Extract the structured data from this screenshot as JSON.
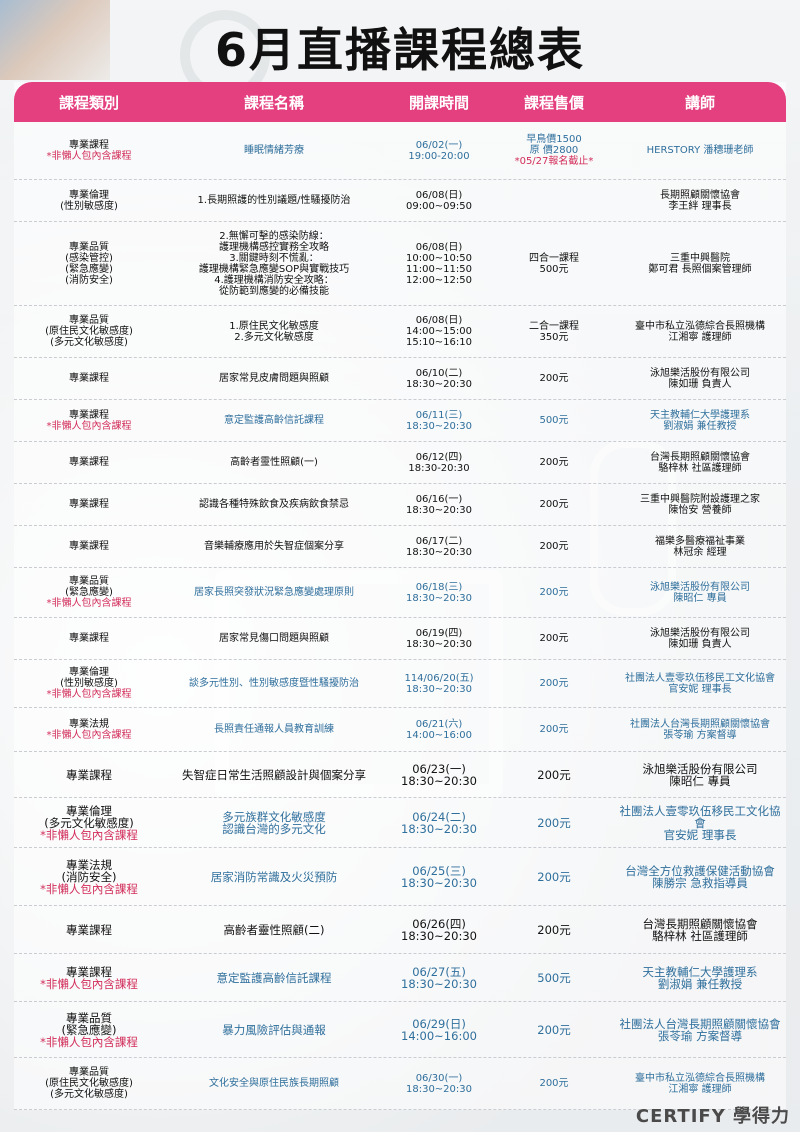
{
  "title": "6月直播課程總表",
  "brand": "CERTIFY 學得力",
  "headers": [
    "課程類別",
    "課程名稱",
    "開課時間",
    "課程售價",
    "講師"
  ],
  "rows": [
    {
      "style": "blue",
      "h": 58,
      "category": "專業課程",
      "note": "*非懶人包內含課程",
      "course": "睡眠情緒芳療",
      "time": "06/02(一)\n19:00-20:00",
      "price": "早鳥價1500\n原    價2800",
      "price_note": "*05/27報名截止*",
      "teacher": "HERSTORY 潘穗珊老師"
    },
    {
      "style": "",
      "h": 42,
      "category": "專業倫理\n(性別敏感度)",
      "note": "",
      "course": "1.長期照護的性別議題/性騷擾防治",
      "time": "06/08(日)\n09:00~09:50",
      "price": "",
      "price_note": "",
      "teacher": "長期照顧關懷協會\n李王絆 理事長"
    },
    {
      "style": "",
      "h": 84,
      "category": "專業品質\n(感染管控)\n(緊急應變)\n(消防安全)",
      "note": "",
      "course": "2.無懈可擊的感染防線：\n護理機構感控實務全攻略\n3.關鍵時刻不慌亂：\n護理機構緊急應變SOP與實戰技巧\n4.護理機構消防安全攻略：\n從防範到應變的必備技能",
      "time": "06/08(日)\n10:00~10:50\n11:00~11:50\n12:00~12:50",
      "price": "四合一課程\n500元",
      "price_note": "",
      "teacher": "三重中興醫院\n鄭可君 長照個案管理師"
    },
    {
      "style": "",
      "h": 52,
      "category": "專業品質\n(原住民文化敏感度)\n(多元文化敏感度)",
      "note": "",
      "course": "1.原住民文化敏感度\n2.多元文化敏感度",
      "time": "06/08(日)\n14:00~15:00\n15:10~16:10",
      "price": "二合一課程\n350元",
      "price_note": "",
      "teacher": "臺中市私立泓德綜合長照機構\n江湘寧 護理師"
    },
    {
      "style": "",
      "h": 42,
      "category": "專業課程",
      "note": "",
      "course": "居家常見皮膚問題與照顧",
      "time": "06/10(二)\n18:30~20:30",
      "price": "200元",
      "price_note": "",
      "teacher": "泳旭樂活股份有限公司\n陳如珊 負責人"
    },
    {
      "style": "blue",
      "h": 42,
      "category": "專業課程",
      "note": "*非懶人包內含課程",
      "course": "意定監護高齡信託課程",
      "time": "06/11(三)\n18:30~20:30",
      "price": "500元",
      "price_note": "",
      "teacher": "天主教輔仁大學護理系\n劉淑娟 兼任教授"
    },
    {
      "style": "",
      "h": 42,
      "category": "專業課程",
      "note": "",
      "course": "高齡者靈性照顧(一)",
      "time": "06/12(四)\n18:30-20:30",
      "price": "200元",
      "price_note": "",
      "teacher": "台灣長期照顧關懷協會\n駱梓林 社區護理師"
    },
    {
      "style": "",
      "h": 42,
      "category": "專業課程",
      "note": "",
      "course": "認識各種特殊飲食及疾病飲食禁忌",
      "time": "06/16(一)\n18:30~20:30",
      "price": "200元",
      "price_note": "",
      "teacher": "三重中興醫院附設護理之家\n陳怡安 營養師"
    },
    {
      "style": "",
      "h": 42,
      "category": "專業課程",
      "note": "",
      "course": "音樂輔療應用於失智症個案分享",
      "time": "06/17(二)\n18:30~20:30",
      "price": "200元",
      "price_note": "",
      "teacher": "福樂多醫療福祉事業\n林冠余 經理"
    },
    {
      "style": "blue",
      "h": 50,
      "category": "專業品質\n(緊急應變)",
      "note": "*非懶人包內含課程",
      "course": "居家長照突發狀況緊急應變處理原則",
      "time": "06/18(三)\n18:30~20:30",
      "price": "200元",
      "price_note": "",
      "teacher": "泳旭樂活股份有限公司\n陳昭仁 專員"
    },
    {
      "style": "",
      "h": 42,
      "category": "專業課程",
      "note": "",
      "course": "居家常見傷口問題與照顧",
      "time": "06/19(四)\n18:30~20:30",
      "price": "200元",
      "price_note": "",
      "teacher": "泳旭樂活股份有限公司\n陳如珊 負責人"
    },
    {
      "style": "blue",
      "h": 48,
      "category": "專業倫理\n(性別敏感度)",
      "note": "*非懶人包內含課程",
      "course": "談多元性別、性別敏感度暨性騷擾防治",
      "time": "114/06/20(五)\n18:30~20:30",
      "price": "200元",
      "price_note": "",
      "teacher": "社團法人壹零玖伍移民工文化協會\n官安妮 理事長"
    },
    {
      "style": "blue",
      "h": 44,
      "category": "專業法規",
      "note": "*非懶人包內含課程",
      "course": "長照責任通報人員教育訓練",
      "time": "06/21(六)\n14:00~16:00",
      "price": "200元",
      "price_note": "",
      "teacher": "社團法人台灣長期照顧關懷協會\n張苓瑜 方案督導"
    },
    {
      "style": "big",
      "h": 46,
      "category": "專業課程",
      "note": "",
      "course": "失智症日常生活照顧設計與個案分享",
      "time": "06/23(一)\n18:30~20:30",
      "price": "200元",
      "price_note": "",
      "teacher": "泳旭樂活股份有限公司\n陳昭仁 專員"
    },
    {
      "style": "blue big",
      "h": 50,
      "category": "專業倫理\n(多元文化敏感度)",
      "note": "*非懶人包內含課程",
      "course": "多元族群文化敏感度\n認識台灣的多元文化",
      "time": "06/24(二)\n18:30~20:30",
      "price": "200元",
      "price_note": "",
      "teacher": "社團法人壹零玖伍移民工文化協會\n官安妮 理事長"
    },
    {
      "style": "blue big",
      "h": 58,
      "category": "專業法規\n(消防安全)",
      "note": "*非懶人包內含課程",
      "course": "居家消防常識及火災預防",
      "time": "06/25(三)\n18:30~20:30",
      "price": "200元",
      "price_note": "",
      "teacher": "台灣全方位救護保健活動協會\n陳勝宗 急救指導員"
    },
    {
      "style": "big",
      "h": 48,
      "category": "專業課程",
      "note": "",
      "course": "高齡者靈性照顧(二)",
      "time": "06/26(四)\n18:30~20:30",
      "price": "200元",
      "price_note": "",
      "teacher": "台灣長期照顧關懷協會\n駱梓林 社區護理師"
    },
    {
      "style": "blue big",
      "h": 48,
      "category": "專業課程",
      "note": "*非懶人包內含課程",
      "course": "意定監護高齡信託課程",
      "time": "06/27(五)\n18:30~20:30",
      "price": "500元",
      "price_note": "",
      "teacher": "天主教輔仁大學護理系\n劉淑娟 兼任教授"
    },
    {
      "style": "blue big",
      "h": 56,
      "category": "專業品質\n(緊急應變)",
      "note": "*非懶人包內含課程",
      "course": "暴力風險評估與通報",
      "time": "06/29(日)\n14:00~16:00",
      "price": "200元",
      "price_note": "",
      "teacher": "社團法人台灣長期照顧關懷協會\n張苓瑜 方案督導"
    },
    {
      "style": "blue",
      "h": 52,
      "category": "專業品質\n(原住民文化敏感度)\n(多元文化敏感度)",
      "note": "",
      "course": "文化安全與原住民族長期照顧",
      "time": "06/30(一)\n18:30~20:30",
      "price": "200元",
      "price_note": "",
      "teacher": "臺中市私立泓德綜合長照機構\n江湘寧 護理師"
    }
  ]
}
